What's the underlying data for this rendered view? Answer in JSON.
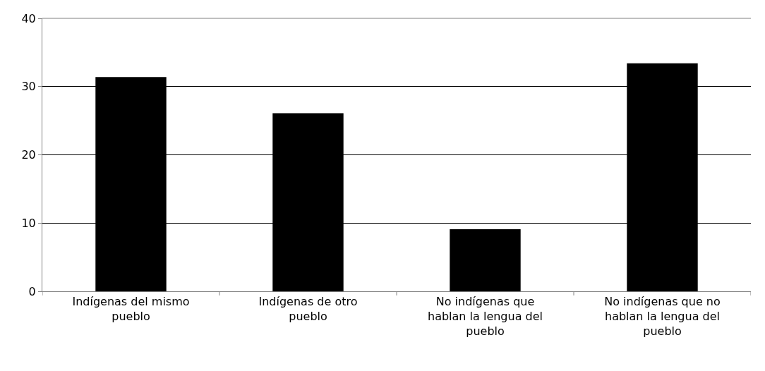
{
  "chart_data": {
    "type": "bar",
    "categories": [
      "Indígenas del mismo pueblo",
      "Indígenas de otro pueblo",
      "No indígenas que hablan la lengua del pueblo",
      "No indígenas que no hablan la lengua del pueblo"
    ],
    "values": [
      31.4,
      26.1,
      9.1,
      33.4
    ],
    "color": "#000000",
    "ylim": [
      0,
      40
    ],
    "yticks": [
      0,
      10,
      20,
      30,
      40
    ],
    "grid": "y"
  }
}
